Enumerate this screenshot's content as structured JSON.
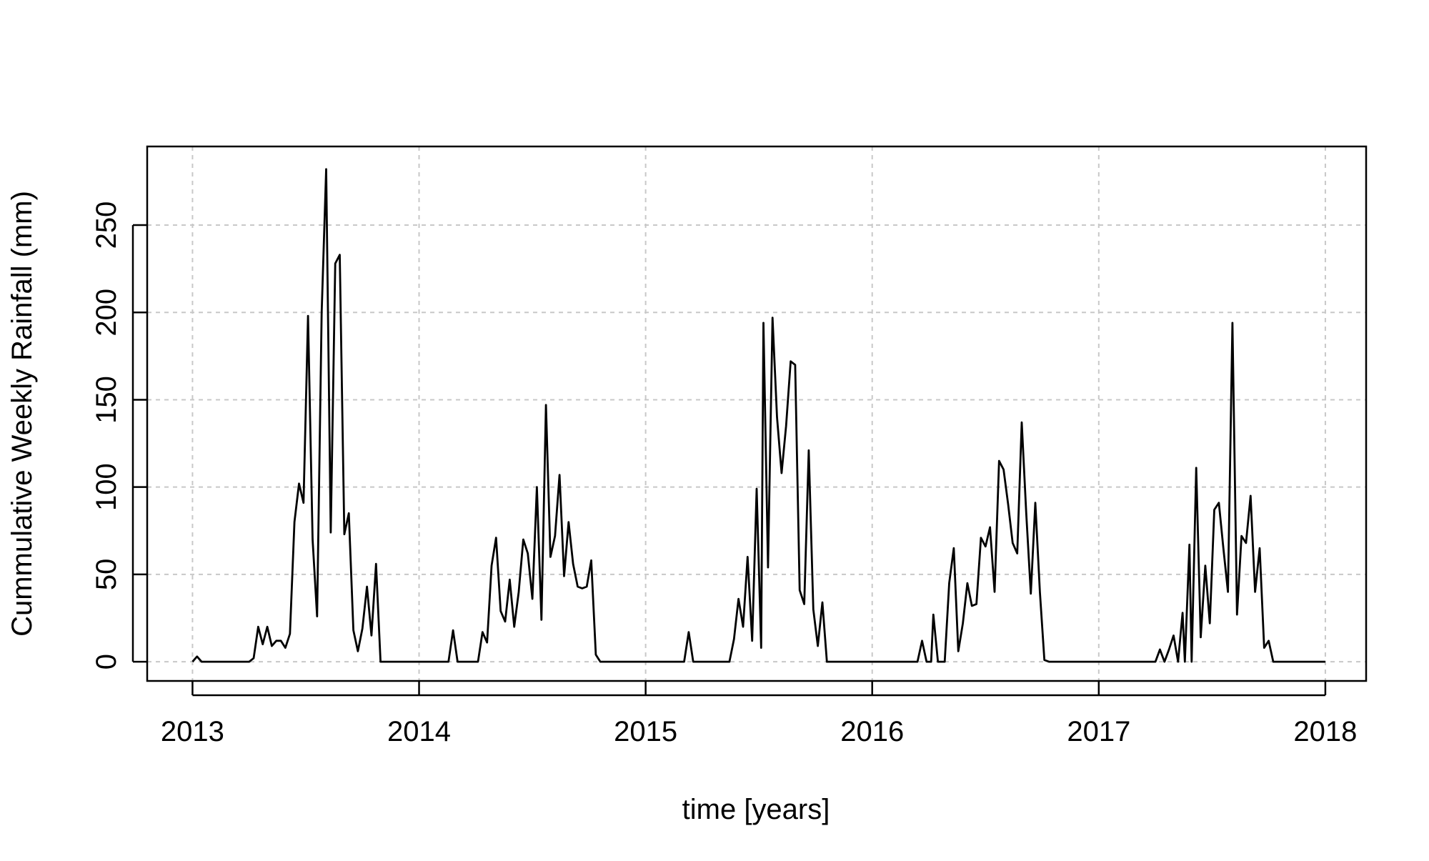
{
  "chart_data": {
    "type": "line",
    "title": "",
    "xlabel": "time [years]",
    "ylabel": "Cummulative Weekly Rainfall (mm)",
    "xlim": [
      2012.8,
      2018.18
    ],
    "ylim": [
      -11,
      295
    ],
    "x_ticks": [
      2013,
      2014,
      2015,
      2016,
      2017,
      2018
    ],
    "y_ticks": [
      0,
      50,
      100,
      150,
      200,
      250
    ],
    "grid": true,
    "grid_style": "dashed",
    "line_color": "#000000",
    "grid_color": "#c8c8c8",
    "series": [
      {
        "points": [
          [
            2013.0,
            0
          ],
          [
            2013.02,
            3
          ],
          [
            2013.04,
            0
          ],
          [
            2013.25,
            0
          ],
          [
            2013.27,
            2
          ],
          [
            2013.29,
            20
          ],
          [
            2013.31,
            10
          ],
          [
            2013.33,
            20
          ],
          [
            2013.35,
            9
          ],
          [
            2013.37,
            12
          ],
          [
            2013.39,
            12
          ],
          [
            2013.41,
            8
          ],
          [
            2013.43,
            16
          ],
          [
            2013.45,
            80
          ],
          [
            2013.47,
            102
          ],
          [
            2013.49,
            91
          ],
          [
            2013.51,
            198
          ],
          [
            2013.53,
            70
          ],
          [
            2013.55,
            26
          ],
          [
            2013.57,
            200
          ],
          [
            2013.59,
            282
          ],
          [
            2013.61,
            74
          ],
          [
            2013.63,
            228
          ],
          [
            2013.65,
            233
          ],
          [
            2013.67,
            73
          ],
          [
            2013.69,
            85
          ],
          [
            2013.71,
            18
          ],
          [
            2013.73,
            6
          ],
          [
            2013.75,
            19
          ],
          [
            2013.77,
            43
          ],
          [
            2013.79,
            15
          ],
          [
            2013.81,
            56
          ],
          [
            2013.83,
            0
          ],
          [
            2014.13,
            0
          ],
          [
            2014.15,
            18
          ],
          [
            2014.17,
            0
          ],
          [
            2014.26,
            0
          ],
          [
            2014.28,
            17
          ],
          [
            2014.3,
            11
          ],
          [
            2014.32,
            55
          ],
          [
            2014.34,
            71
          ],
          [
            2014.36,
            29
          ],
          [
            2014.38,
            23
          ],
          [
            2014.4,
            47
          ],
          [
            2014.42,
            20
          ],
          [
            2014.44,
            40
          ],
          [
            2014.46,
            70
          ],
          [
            2014.48,
            62
          ],
          [
            2014.5,
            36
          ],
          [
            2014.52,
            100
          ],
          [
            2014.54,
            24
          ],
          [
            2014.56,
            147
          ],
          [
            2014.58,
            60
          ],
          [
            2014.6,
            72
          ],
          [
            2014.62,
            107
          ],
          [
            2014.64,
            49
          ],
          [
            2014.66,
            80
          ],
          [
            2014.68,
            56
          ],
          [
            2014.7,
            43
          ],
          [
            2014.72,
            42
          ],
          [
            2014.74,
            43
          ],
          [
            2014.76,
            58
          ],
          [
            2014.78,
            4
          ],
          [
            2014.8,
            0
          ],
          [
            2015.17,
            0
          ],
          [
            2015.19,
            17
          ],
          [
            2015.21,
            0
          ],
          [
            2015.37,
            0
          ],
          [
            2015.39,
            13
          ],
          [
            2015.41,
            36
          ],
          [
            2015.43,
            20
          ],
          [
            2015.45,
            60
          ],
          [
            2015.47,
            12
          ],
          [
            2015.49,
            99
          ],
          [
            2015.51,
            8
          ],
          [
            2015.52,
            194
          ],
          [
            2015.54,
            54
          ],
          [
            2015.56,
            197
          ],
          [
            2015.58,
            140
          ],
          [
            2015.6,
            108
          ],
          [
            2015.62,
            135
          ],
          [
            2015.64,
            172
          ],
          [
            2015.66,
            170
          ],
          [
            2015.68,
            41
          ],
          [
            2015.7,
            33
          ],
          [
            2015.72,
            121
          ],
          [
            2015.74,
            30
          ],
          [
            2015.76,
            9
          ],
          [
            2015.78,
            34
          ],
          [
            2015.8,
            0
          ],
          [
            2016.2,
            0
          ],
          [
            2016.22,
            12
          ],
          [
            2016.24,
            0
          ],
          [
            2016.26,
            0
          ],
          [
            2016.27,
            27
          ],
          [
            2016.29,
            0
          ],
          [
            2016.32,
            0
          ],
          [
            2016.34,
            45
          ],
          [
            2016.36,
            65
          ],
          [
            2016.38,
            6
          ],
          [
            2016.4,
            22
          ],
          [
            2016.42,
            45
          ],
          [
            2016.44,
            32
          ],
          [
            2016.46,
            33
          ],
          [
            2016.48,
            71
          ],
          [
            2016.5,
            66
          ],
          [
            2016.52,
            77
          ],
          [
            2016.54,
            40
          ],
          [
            2016.56,
            115
          ],
          [
            2016.58,
            110
          ],
          [
            2016.6,
            90
          ],
          [
            2016.62,
            68
          ],
          [
            2016.64,
            62
          ],
          [
            2016.66,
            137
          ],
          [
            2016.68,
            85
          ],
          [
            2016.7,
            39
          ],
          [
            2016.72,
            91
          ],
          [
            2016.74,
            40
          ],
          [
            2016.76,
            1
          ],
          [
            2016.78,
            0
          ],
          [
            2017.25,
            0
          ],
          [
            2017.27,
            7
          ],
          [
            2017.29,
            0
          ],
          [
            2017.31,
            7
          ],
          [
            2017.33,
            15
          ],
          [
            2017.35,
            0
          ],
          [
            2017.37,
            28
          ],
          [
            2017.38,
            0
          ],
          [
            2017.4,
            67
          ],
          [
            2017.41,
            0
          ],
          [
            2017.43,
            111
          ],
          [
            2017.45,
            14
          ],
          [
            2017.47,
            55
          ],
          [
            2017.49,
            22
          ],
          [
            2017.51,
            87
          ],
          [
            2017.53,
            91
          ],
          [
            2017.55,
            65
          ],
          [
            2017.57,
            40
          ],
          [
            2017.59,
            194
          ],
          [
            2017.61,
            27
          ],
          [
            2017.63,
            72
          ],
          [
            2017.65,
            68
          ],
          [
            2017.67,
            95
          ],
          [
            2017.69,
            40
          ],
          [
            2017.71,
            65
          ],
          [
            2017.73,
            8
          ],
          [
            2017.75,
            12
          ],
          [
            2017.77,
            0
          ],
          [
            2018.0,
            0
          ]
        ]
      }
    ]
  }
}
